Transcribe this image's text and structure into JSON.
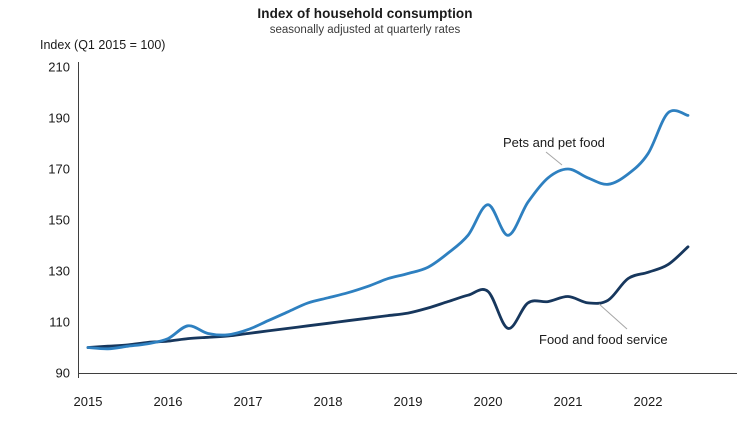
{
  "chart_data": {
    "type": "line",
    "title": "Index of household consumption",
    "subtitle": "seasonally adjusted at quarterly rates",
    "ylabel": "Index (Q1 2015 = 100)",
    "xlabel": "",
    "ylim": [
      90,
      210
    ],
    "y_ticks": [
      210,
      190,
      170,
      150,
      130,
      110,
      90
    ],
    "x_tick_labels": [
      "2015",
      "2016",
      "2017",
      "2018",
      "2019",
      "2020",
      "2021",
      "2022"
    ],
    "grid": "off",
    "legend_position": "inline-labels-with-leader-lines",
    "x_frequency": "quarterly",
    "x_quarters": [
      "2015 Q1",
      "2015 Q2",
      "2015 Q3",
      "2015 Q4",
      "2016 Q1",
      "2016 Q2",
      "2016 Q3",
      "2016 Q4",
      "2017 Q1",
      "2017 Q2",
      "2017 Q3",
      "2017 Q4",
      "2018 Q1",
      "2018 Q2",
      "2018 Q3",
      "2018 Q4",
      "2019 Q1",
      "2019 Q2",
      "2019 Q3",
      "2019 Q4",
      "2020 Q1",
      "2020 Q2",
      "2020 Q3",
      "2020 Q4",
      "2021 Q1",
      "2021 Q2",
      "2021 Q3",
      "2021 Q4",
      "2022 Q1",
      "2022 Q2",
      "2022 Q3"
    ],
    "series": [
      {
        "name": "Pets and pet food",
        "color": "#2e80c0",
        "values": [
          100,
          99.5,
          100.5,
          101.5,
          103.5,
          108.5,
          105.5,
          105,
          107,
          110.5,
          114,
          117.5,
          119.5,
          121.5,
          124,
          127,
          129,
          131.5,
          137,
          144,
          156,
          144,
          157,
          166.5,
          170,
          166.5,
          164,
          168,
          176,
          192,
          191
        ]
      },
      {
        "name": "Food and food service",
        "color": "#17375d",
        "values": [
          100,
          100.5,
          101,
          102,
          102.5,
          103.5,
          104,
          104.5,
          105.5,
          106.5,
          107.5,
          108.5,
          109.5,
          110.5,
          111.5,
          112.5,
          113.5,
          115.5,
          118,
          120.5,
          122,
          107.5,
          117.5,
          118,
          120,
          117.5,
          118.5,
          127,
          129.5,
          132.5,
          139.5
        ]
      }
    ],
    "axis_color": "#3f3f3f",
    "leader_line_color": "#a6a6a6"
  }
}
